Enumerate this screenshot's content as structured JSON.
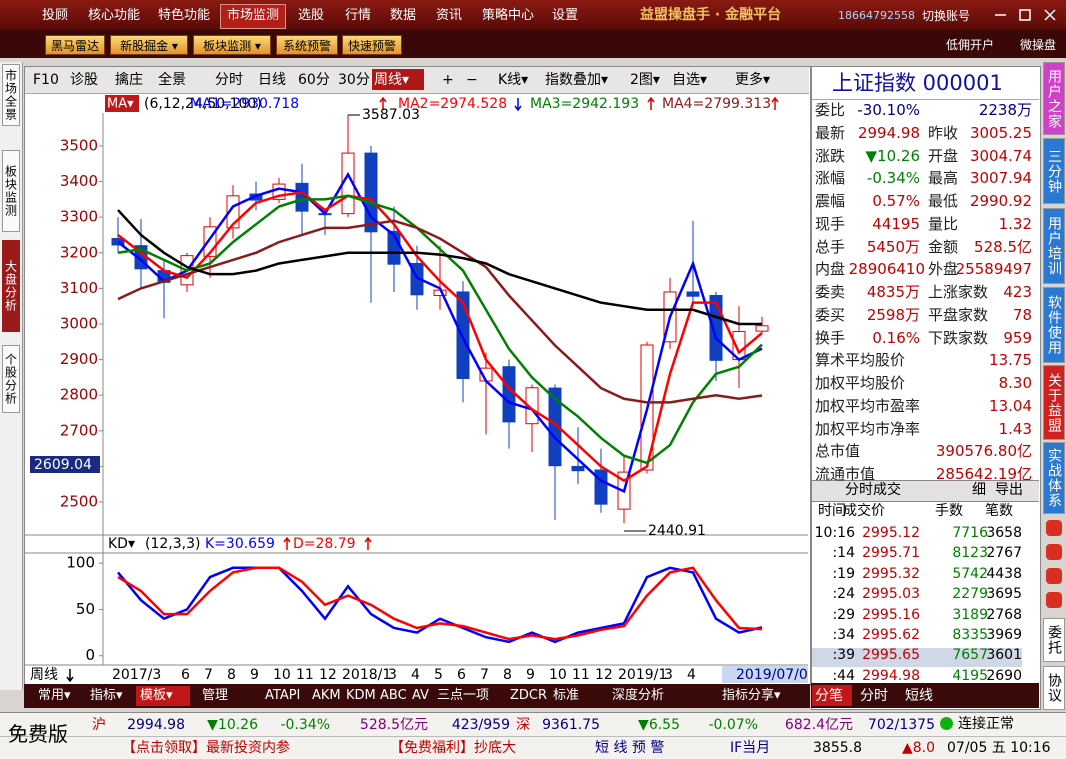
{
  "menu": {
    "items": [
      "投顾",
      "核心功能",
      "特色功能",
      "市场监测",
      "选股",
      "行情",
      "数据",
      "资讯",
      "策略中心",
      "设置"
    ],
    "brand": "益盟操盘手 · 金融平台",
    "phone": "18664792558",
    "account": "切换账号"
  },
  "toolbar": {
    "buttons": [
      "黑马雷达",
      "新股掘金 ▾",
      "板块监测 ▾",
      "系统预警",
      "快速预警"
    ],
    "links": [
      "低佣开户",
      "微操盘"
    ]
  },
  "side_tabs": [
    "市场全景",
    "板块监测",
    "大盘分析",
    "个股分析"
  ],
  "chart_toolbar": [
    "F10",
    "诊股",
    "擒庄",
    "全景",
    "分时",
    "日线",
    "60分",
    "30分",
    "周线▾",
    "+",
    "−",
    "K线▾",
    "指数叠加▾",
    "2图▾",
    "自选▾",
    "更多▾"
  ],
  "chart_data": [
    {
      "type": "candlestick",
      "indicator": "MA▾",
      "params": "(6,12,24,50,100)",
      "period_label": "周线",
      "cursor_x_label": "2019/07/0",
      "cursor_y_label": "2609.04",
      "high_label": "3587.03",
      "low_label": "2440.91",
      "x": [
        "2017/3",
        null,
        null,
        "6",
        "7",
        "8",
        "9",
        "10",
        "11",
        "12",
        "2018/1",
        null,
        "3",
        "4",
        "5",
        "6",
        "7",
        "8",
        "9",
        "10",
        "11",
        "12",
        "2019/1",
        null,
        "3",
        "4",
        null,
        null,
        null
      ],
      "open": [
        3240,
        3220,
        3150,
        3110,
        3190,
        3270,
        3365,
        3350,
        3395,
        3310,
        3310,
        3480,
        3260,
        3170,
        3080,
        3090,
        2840,
        2880,
        2720,
        2820,
        2600,
        2590,
        2480,
        2590,
        2950,
        3090,
        3080,
        2900,
        2980
      ],
      "high": [
        3300,
        3295,
        3180,
        3200,
        3300,
        3390,
        3400,
        3410,
        3450,
        3320,
        3587,
        3500,
        3330,
        3220,
        3220,
        3120,
        2920,
        2900,
        2830,
        2830,
        2710,
        2650,
        2630,
        2950,
        3130,
        3290,
        3090,
        3050,
        3020
      ],
      "low": [
        3200,
        3100,
        3016,
        3090,
        3130,
        3240,
        3320,
        3340,
        3250,
        3250,
        3300,
        3060,
        3090,
        3040,
        3040,
        2780,
        2690,
        2650,
        2640,
        2450,
        2550,
        2470,
        2441,
        2580,
        2930,
        3050,
        2840,
        2820,
        2975
      ],
      "close": [
        3222,
        3155,
        3117,
        3192,
        3273,
        3360,
        3348,
        3393,
        3317,
        3307,
        3480,
        3259,
        3168,
        3082,
        3095,
        2847,
        2876,
        2725,
        2821,
        2602,
        2588,
        2494,
        2584,
        2941,
        3090,
        3078,
        2898,
        2979,
        2995
      ],
      "up_color": "#e00000",
      "down_color": "#1040c0",
      "series": [
        {
          "name": "MA1=2930.718",
          "color": "#0000ff",
          "values": [
            3230,
            3180,
            3120,
            3150,
            3240,
            3330,
            3360,
            3380,
            3370,
            3310,
            3420,
            3300,
            3250,
            3130,
            3100,
            2960,
            2840,
            2780,
            2760,
            2680,
            2620,
            2560,
            2530,
            2760,
            3020,
            3170,
            2960,
            2900,
            2930.718
          ]
        },
        {
          "name": "MA2=2974.528",
          "color": "#ff0000",
          "values": [
            3250,
            3200,
            3150,
            3130,
            3200,
            3280,
            3340,
            3360,
            3370,
            3320,
            3360,
            3350,
            3280,
            3190,
            3120,
            3060,
            2900,
            2820,
            2760,
            2720,
            2660,
            2600,
            2560,
            2600,
            2860,
            3060,
            3060,
            2920,
            2974.528
          ]
        },
        {
          "name": "MA3=2942.193",
          "color": "#008000",
          "values": [
            3200,
            3210,
            3180,
            3150,
            3170,
            3230,
            3280,
            3330,
            3350,
            3350,
            3360,
            3340,
            3320,
            3270,
            3210,
            3150,
            3040,
            2930,
            2850,
            2790,
            2740,
            2680,
            2630,
            2610,
            2660,
            2780,
            2860,
            2880,
            2942.193
          ]
        },
        {
          "name": "MA4=2799.313",
          "color": "#8b1a1a",
          "values": [
            3070,
            3100,
            3120,
            3140,
            3160,
            3180,
            3200,
            3230,
            3250,
            3270,
            3270,
            3280,
            3290,
            3270,
            3240,
            3200,
            3160,
            3080,
            3010,
            2940,
            2880,
            2820,
            2790,
            2780,
            2780,
            2790,
            2800,
            2790,
            2799.313
          ]
        },
        {
          "color": "#000000",
          "values": [
            3320,
            3250,
            3200,
            3160,
            3140,
            3140,
            3150,
            3170,
            3180,
            3190,
            3200,
            3200,
            3200,
            3200,
            3195,
            3185,
            3170,
            3140,
            3120,
            3100,
            3080,
            3060,
            3050,
            3040,
            3040,
            3040,
            3020,
            3000,
            3000
          ]
        }
      ],
      "ylim": [
        2413,
        3587
      ],
      "yticks": [
        2500,
        2600,
        2700,
        2800,
        2900,
        3000,
        3100,
        3200,
        3300,
        3400,
        3500
      ]
    },
    {
      "type": "line",
      "indicator": "KD▾",
      "params": "(12,3,3)",
      "series": [
        {
          "name": "K=30.659",
          "color": "#0000ff",
          "values": [
            90,
            60,
            40,
            50,
            85,
            95,
            95,
            95,
            70,
            40,
            75,
            45,
            30,
            25,
            40,
            30,
            20,
            15,
            25,
            15,
            25,
            30,
            35,
            85,
            95,
            90,
            40,
            25,
            30.659
          ]
        },
        {
          "name": "D=28.79",
          "color": "#ff0000",
          "values": [
            85,
            70,
            45,
            45,
            70,
            90,
            95,
            95,
            80,
            55,
            65,
            55,
            40,
            30,
            35,
            32,
            25,
            18,
            22,
            18,
            22,
            28,
            32,
            65,
            90,
            95,
            60,
            30,
            28.79
          ]
        }
      ],
      "ylim": [
        -10,
        111
      ],
      "yticks": [
        0,
        50,
        100
      ]
    }
  ],
  "chart_tabs": [
    "常用▾",
    "指标▾",
    "模板▾",
    "管理",
    "ATAPI",
    "AKM",
    "KDM",
    "ABC",
    "AV",
    "三点一项",
    "ZDCR",
    "标准",
    "深度分析",
    "指标分享▾"
  ],
  "quote": {
    "title": "上证指数 000001",
    "rows": [
      [
        "委比",
        "-30.10%",
        "2238万"
      ],
      [
        "最新",
        "2994.98",
        "昨收",
        "3005.25"
      ],
      [
        "涨跌",
        "▼10.26",
        "开盘",
        "3004.74"
      ],
      [
        "涨幅",
        "-0.34%",
        "最高",
        "3007.94"
      ],
      [
        "震幅",
        "0.57%",
        "最低",
        "2990.92"
      ],
      [
        "现手",
        "44195",
        "量比",
        "1.32"
      ],
      [
        "总手",
        "5450万",
        "金额",
        "528.5亿"
      ],
      [
        "内盘",
        "28906410",
        "外盘",
        "25589497"
      ],
      [
        "委卖",
        "4835万",
        "上涨家数",
        "423"
      ],
      [
        "委买",
        "2598万",
        "平盘家数",
        "78"
      ],
      [
        "换手",
        "0.16%",
        "下跌家数",
        "959"
      ],
      [
        "算术平均股价",
        "13.75"
      ],
      [
        "加权平均股价",
        "8.30"
      ],
      [
        "加权平均市盈率",
        "13.04"
      ],
      [
        "加权平均市净率",
        "1.43"
      ],
      [
        "总市值",
        "390576.80亿"
      ],
      [
        "流通市值",
        "285642.19亿"
      ]
    ],
    "trade_tabs": [
      "分时成交",
      "细",
      "导出"
    ],
    "trade_header": [
      "时间",
      "成交价",
      "手数",
      "笔数"
    ],
    "trades": [
      [
        "10:16",
        "2995.12",
        "7716",
        "3658"
      ],
      [
        ":14",
        "2995.71",
        "8123",
        "2767"
      ],
      [
        ":19",
        "2995.32",
        "5742",
        "4438"
      ],
      [
        ":24",
        "2995.03",
        "2279",
        "3695"
      ],
      [
        ":29",
        "2995.16",
        "3189",
        "2768"
      ],
      [
        ":34",
        "2995.62",
        "8335",
        "3969"
      ],
      [
        ":39",
        "2995.65",
        "7657",
        "3601"
      ],
      [
        ":44",
        "2994.98",
        "4195",
        "2690"
      ]
    ],
    "bottom_tabs": [
      "分笔",
      "分时",
      "短线"
    ]
  },
  "right_tabs": [
    "用户之家",
    "三分钟",
    "用户培训",
    "软件使用",
    "关于益盟",
    "实战体系",
    "委托",
    "协议"
  ],
  "status": {
    "edition": "免费版",
    "sh": [
      "沪",
      "2994.98",
      "▼10.26",
      "-0.34%",
      "528.5亿元",
      "423/959"
    ],
    "sz": [
      "深",
      "9361.75",
      "▼6.55",
      "-0.07%",
      "682.4亿元",
      "702/1375"
    ],
    "connection": "连接正常",
    "news": [
      "【点击领取】最新投资内参",
      "【免费福利】抄底大"
    ],
    "alert": "短 线 预 警",
    "future": [
      "IF当月",
      "3855.8",
      "▲8.0"
    ],
    "time": "07/05 五 10:16"
  }
}
